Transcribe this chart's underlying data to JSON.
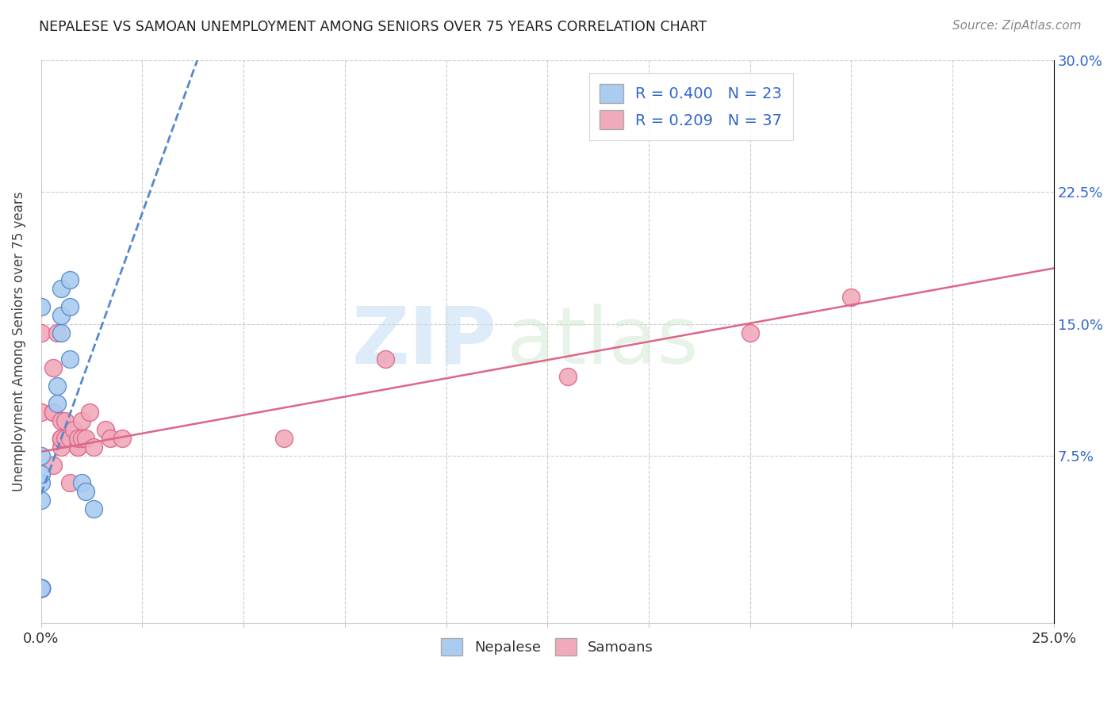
{
  "title": "NEPALESE VS SAMOAN UNEMPLOYMENT AMONG SENIORS OVER 75 YEARS CORRELATION CHART",
  "source": "Source: ZipAtlas.com",
  "ylabel": "Unemployment Among Seniors over 75 years",
  "xlim": [
    0.0,
    0.25
  ],
  "ylim": [
    -0.02,
    0.3
  ],
  "yplot_min": 0.0,
  "xticks": [
    0.0,
    0.025,
    0.05,
    0.075,
    0.1,
    0.125,
    0.15,
    0.175,
    0.2,
    0.225,
    0.25
  ],
  "yticks_right": [
    0.0,
    0.075,
    0.15,
    0.225,
    0.3
  ],
  "ytick_labels_right": [
    "",
    "7.5%",
    "15.0%",
    "22.5%",
    "30.0%"
  ],
  "legend_blue_r": "0.400",
  "legend_blue_n": "23",
  "legend_pink_r": "0.209",
  "legend_pink_n": "37",
  "watermark_zip": "ZIP",
  "watermark_atlas": "atlas",
  "blue_color": "#aaccf0",
  "pink_color": "#f0aabb",
  "trendline_blue_color": "#5588cc",
  "trendline_pink_color": "#dd6688",
  "nepalese_x": [
    0.0,
    0.0,
    0.0,
    0.0,
    0.0,
    0.0,
    0.0,
    0.0,
    0.0,
    0.0,
    0.0,
    0.0,
    0.004,
    0.004,
    0.005,
    0.005,
    0.005,
    0.007,
    0.007,
    0.007,
    0.01,
    0.011,
    0.013
  ],
  "nepalese_y": [
    0.0,
    0.0,
    0.0,
    0.0,
    0.0,
    0.0,
    0.0,
    0.05,
    0.06,
    0.065,
    0.075,
    0.16,
    0.105,
    0.115,
    0.145,
    0.155,
    0.17,
    0.13,
    0.16,
    0.175,
    0.06,
    0.055,
    0.045
  ],
  "samoan_x": [
    0.0,
    0.0,
    0.0,
    0.0,
    0.0,
    0.0,
    0.003,
    0.003,
    0.003,
    0.003,
    0.004,
    0.005,
    0.005,
    0.005,
    0.005,
    0.005,
    0.006,
    0.006,
    0.007,
    0.007,
    0.008,
    0.009,
    0.009,
    0.009,
    0.01,
    0.01,
    0.011,
    0.012,
    0.013,
    0.016,
    0.017,
    0.02,
    0.06,
    0.085,
    0.13,
    0.175,
    0.2
  ],
  "samoan_y": [
    0.0,
    0.0,
    0.0,
    0.0,
    0.1,
    0.145,
    0.07,
    0.1,
    0.1,
    0.125,
    0.145,
    0.08,
    0.085,
    0.085,
    0.085,
    0.095,
    0.085,
    0.095,
    0.06,
    0.085,
    0.09,
    0.08,
    0.08,
    0.085,
    0.085,
    0.095,
    0.085,
    0.1,
    0.08,
    0.09,
    0.085,
    0.085,
    0.085,
    0.13,
    0.12,
    0.145,
    0.165
  ]
}
